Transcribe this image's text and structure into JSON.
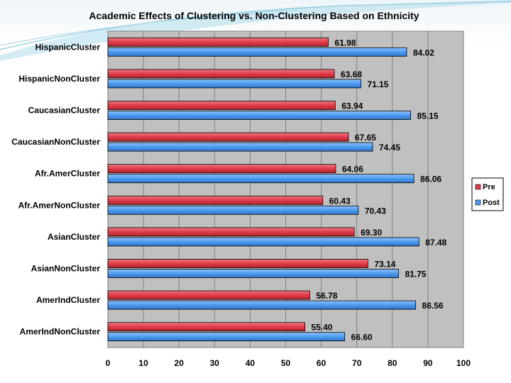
{
  "chart_data": {
    "type": "bar",
    "orientation": "horizontal",
    "title": "Academic Effects of Clustering vs. Non-Clustering Based on Ethnicity",
    "categories": [
      "HispanicCluster",
      "HispanicNonCluster",
      "CaucasianCluster",
      "CaucasianNonCluster",
      "Afr.AmerCluster",
      "Afr.AmerNonCluster",
      "AsianCluster",
      "AsianNonCluster",
      "AmerIndCluster",
      "AmerIndNonCluster"
    ],
    "series": [
      {
        "name": "Pre",
        "color": "#e03c4a",
        "values": [
          61.98,
          63.68,
          63.94,
          67.65,
          64.06,
          60.43,
          69.3,
          73.14,
          56.78,
          55.4
        ],
        "labels": [
          "61.98",
          "63.68",
          "63.94",
          "67.65",
          "64.06",
          "60.43",
          "69.30",
          "73.14",
          "56.78",
          "55.40"
        ]
      },
      {
        "name": "Post",
        "color": "#4f9bef",
        "values": [
          84.02,
          71.15,
          85.15,
          74.45,
          86.06,
          70.43,
          87.48,
          81.75,
          86.56,
          66.6
        ],
        "labels": [
          "84.02",
          "71.15",
          "85.15",
          "74.45",
          "86.06",
          "70.43",
          "87.48",
          "81.75",
          "86.56",
          "66.60"
        ]
      }
    ],
    "xlim": [
      0,
      100
    ],
    "xticks": [
      "0",
      "10",
      "20",
      "30",
      "40",
      "50",
      "60",
      "70",
      "80",
      "90",
      "100"
    ],
    "grid": true,
    "legend_position": "right"
  }
}
